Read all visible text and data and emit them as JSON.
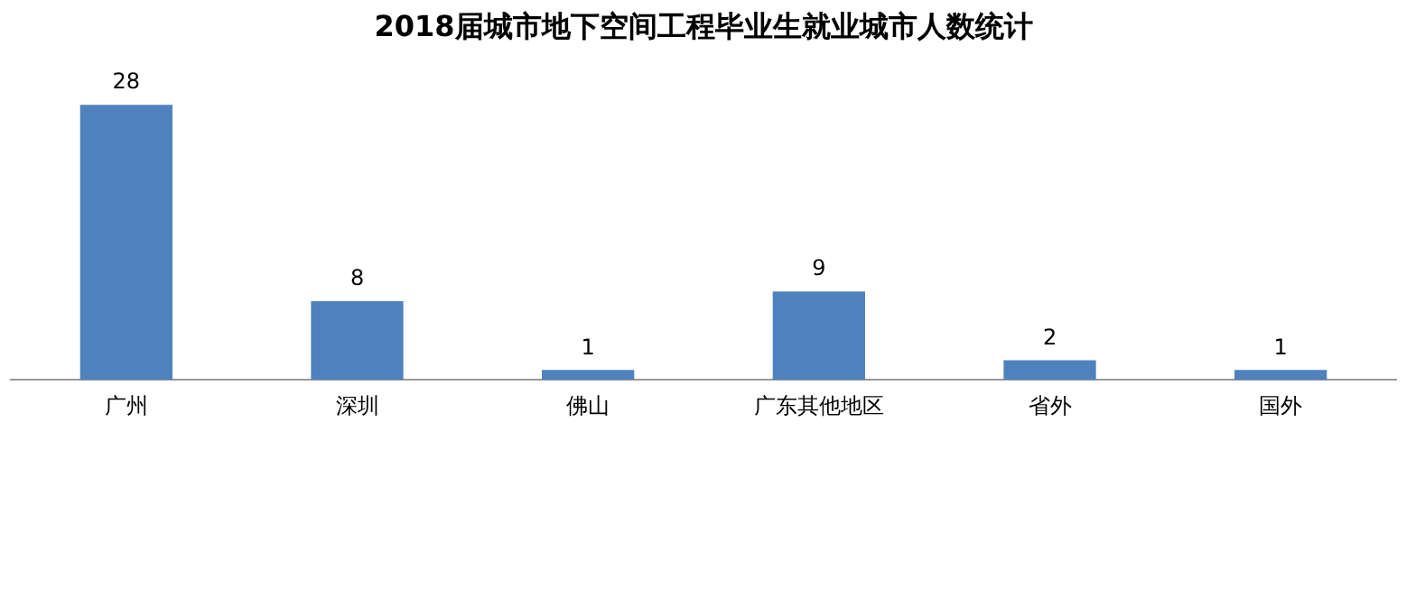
{
  "chart_data": {
    "type": "bar",
    "title": "2018届城市地下空间工程毕业生就业城市人数统计",
    "categories": [
      "广州",
      "深圳",
      "佛山",
      "广东其他地区",
      "省外",
      "国外"
    ],
    "values": [
      28,
      8,
      1,
      9,
      2,
      1
    ],
    "color": "#4f81bd",
    "data_labels": true,
    "grid": false,
    "legend": false
  }
}
